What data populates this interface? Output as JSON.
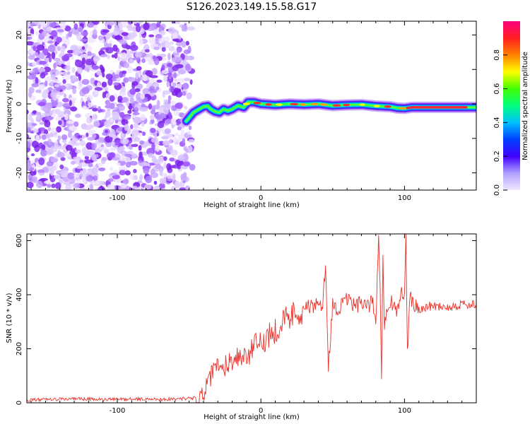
{
  "title": "S126.2023.149.15.58.G17",
  "chart_data": [
    {
      "type": "heatmap",
      "xlabel": "Height of straight line (km)",
      "ylabel": "Frequency (Hz)",
      "xlim": [
        -163,
        150
      ],
      "ylim": [
        -25,
        24
      ],
      "xticks": [
        -100,
        0,
        100
      ],
      "yticks": [
        -20,
        -10,
        0,
        10,
        20
      ],
      "grid": false,
      "colorbar": {
        "label": "Normalized spectral amplitude",
        "range": [
          0.0,
          1.0
        ],
        "ticks": [
          "0.0",
          "0.2",
          "0.4",
          "0.6",
          "0.8"
        ],
        "colors": [
          "#f0e6ff",
          "#b0a0ff",
          "#4000ff",
          "#0040ff",
          "#00c0ff",
          "#00ff80",
          "#40ff00",
          "#ffff00",
          "#ff8000",
          "#ff2020",
          "#ff0080"
        ]
      },
      "noise_region": {
        "x": [
          -163,
          -50
        ],
        "y": [
          -25,
          24
        ]
      },
      "signal_line": {
        "x": [
          -52,
          -47,
          -43,
          -40,
          -37,
          -35,
          -32,
          -29,
          -26,
          -23,
          -20,
          -16,
          -12,
          -9,
          -5,
          0,
          10,
          20,
          30,
          40,
          50,
          60,
          70,
          80,
          90,
          95,
          100,
          105,
          110,
          120,
          130,
          140,
          150
        ],
        "y": [
          -5,
          -2.5,
          -1.5,
          -0.8,
          -0.6,
          -1.5,
          -2.2,
          -2.5,
          -1.5,
          -2,
          -1.5,
          -0.5,
          -1,
          0.5,
          0.5,
          0,
          -0.3,
          0,
          -0.2,
          0,
          -0.5,
          -0.3,
          -0.2,
          -0.6,
          -0.8,
          -1.2,
          -1.3,
          -1.0,
          -1.0,
          -1.0,
          -1.0,
          -1.0,
          -1.0
        ]
      }
    },
    {
      "type": "line",
      "xlabel": "Height of straight line (km)",
      "ylabel": "SNR (10 * v/v)",
      "xlim": [
        -163,
        150
      ],
      "ylim": [
        0,
        625
      ],
      "xticks": [
        -100,
        0,
        100
      ],
      "yticks": [
        0,
        200,
        400,
        600
      ],
      "grid": false,
      "series": [
        {
          "color": "#e8322c",
          "x": [
            -163,
            -150,
            -130,
            -110,
            -90,
            -70,
            -55,
            -45,
            -40,
            -36,
            -33,
            -30,
            -27,
            -24,
            -20,
            -16,
            -12,
            -8,
            -4,
            0,
            5,
            10,
            15,
            20,
            25,
            30,
            35,
            40,
            43,
            45,
            47,
            50,
            55,
            60,
            65,
            70,
            75,
            78,
            80,
            82,
            83,
            84,
            85,
            86,
            88,
            90,
            95,
            98,
            100,
            101,
            102,
            104,
            106,
            110,
            120,
            130,
            140,
            150
          ],
          "y": [
            10,
            12,
            15,
            12,
            14,
            13,
            15,
            18,
            30,
            80,
            120,
            140,
            110,
            150,
            160,
            175,
            170,
            180,
            210,
            220,
            250,
            270,
            300,
            320,
            335,
            350,
            355,
            360,
            370,
            500,
            140,
            360,
            350,
            380,
            360,
            365,
            355,
            375,
            300,
            620,
            450,
            80,
            550,
            300,
            360,
            380,
            340,
            420,
            380,
            630,
            180,
            400,
            360,
            350,
            360,
            355,
            365,
            360
          ]
        }
      ]
    }
  ]
}
